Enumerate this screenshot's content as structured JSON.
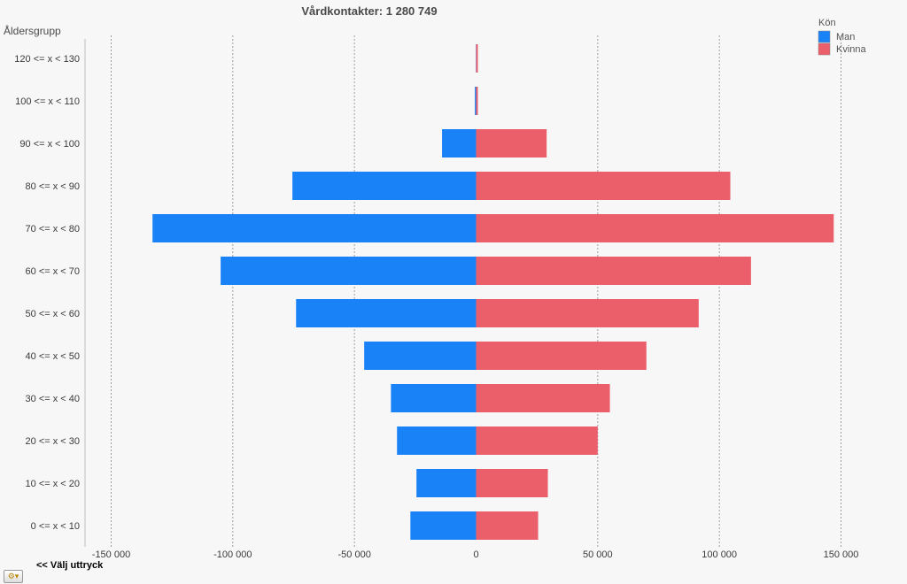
{
  "chart_data": {
    "type": "bar",
    "orientation": "horizontal-diverging",
    "title": "Vårdkontakter: 1 280 749",
    "ylabel": "Åldersgrupp",
    "legend_title": "Kön",
    "legend_position": "top-right",
    "categories": [
      "120 <= x < 130",
      "100 <= x < 110",
      "90 <= x < 100",
      "80 <= x < 90",
      "70 <= x < 80",
      "60 <= x < 70",
      "50 <= x < 60",
      "40 <= x < 50",
      "30 <= x < 40",
      "20 <= x < 30",
      "10 <= x < 20",
      "0 <= x < 10"
    ],
    "series": [
      {
        "name": "Man",
        "color": "#1a82f7",
        "values": [
          -100,
          -500,
          -14000,
          -75500,
          -133000,
          -105000,
          -74000,
          -46000,
          -35000,
          -32500,
          -24500,
          -27000
        ]
      },
      {
        "name": "Kvinna",
        "color": "#eb5f6b",
        "values": [
          250,
          400,
          29000,
          104500,
          147000,
          113000,
          91500,
          70000,
          55000,
          50000,
          29500,
          25500
        ]
      }
    ],
    "xlim": [
      -160000,
      160000
    ],
    "xticks": [
      -150000,
      -100000,
      -50000,
      0,
      50000,
      100000,
      150000
    ],
    "xtick_labels": [
      "-150 000",
      "-100 000",
      "-50 000",
      "0",
      "50 000",
      "100 000",
      "150 000"
    ],
    "grid": "vertical dashed"
  },
  "footer": {
    "expression_link": "<< Välj uttryck"
  }
}
